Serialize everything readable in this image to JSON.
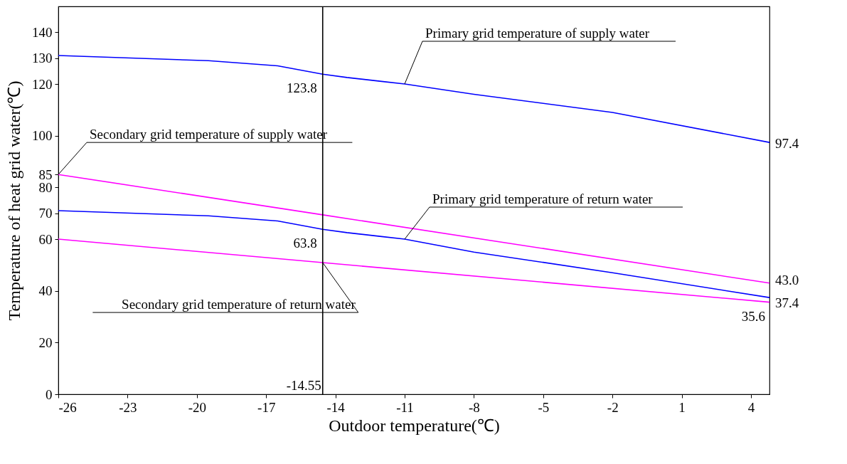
{
  "chart_data": {
    "type": "line",
    "xlabel": "Outdoor temperature(℃)",
    "ylabel": "Temperature of heat grid water(℃)",
    "xlim": [
      -26,
      4.8
    ],
    "xticks": [
      -26,
      -23,
      -20,
      -17,
      -14,
      -11,
      -8,
      -5,
      -2,
      1,
      4
    ],
    "ylim": [
      0,
      150
    ],
    "yticks": [
      0,
      20,
      40,
      60,
      70,
      80,
      85,
      100,
      120,
      130,
      140
    ],
    "grid": false,
    "marker": "none",
    "line_style": "solid",
    "ref_lines": [
      {
        "axis": "x",
        "value": -14.55,
        "label": "-14.55",
        "color": "#000000"
      }
    ],
    "series": [
      {
        "name": "Primary grid temperature of supply water",
        "color": "#0000ff",
        "x": [
          -26,
          -19.5,
          -16.5,
          -14.55,
          -13.5,
          -12,
          -11,
          -8,
          -2,
          4.8
        ],
        "values": [
          131,
          129,
          127,
          123.8,
          122.5,
          121,
          120,
          116,
          109,
          97.4
        ],
        "value_labels": [
          null,
          null,
          null,
          "123.8",
          null,
          null,
          null,
          null,
          null,
          "97.4"
        ]
      },
      {
        "name": "Secondary grid temperature of supply water",
        "color": "#ff00ff",
        "x": [
          -26,
          -14.55,
          4.8
        ],
        "values": [
          85,
          69.4,
          43.0
        ],
        "value_labels": [
          null,
          null,
          "43.0"
        ]
      },
      {
        "name": "Primary grid temperature of return water",
        "color": "#0000ff",
        "x": [
          -26,
          -19.5,
          -16.5,
          -14.55,
          -13.5,
          -12,
          -11,
          -8,
          -2,
          4.8
        ],
        "values": [
          71,
          69,
          67,
          63.8,
          62.5,
          61,
          60,
          55,
          47,
          37.4
        ],
        "value_labels": [
          null,
          null,
          null,
          "63.8",
          null,
          null,
          null,
          null,
          null,
          "37.4"
        ]
      },
      {
        "name": "Secondary grid temperature of return water",
        "color": "#ff00ff",
        "x": [
          -26,
          -14.55,
          4.8
        ],
        "values": [
          60,
          50.9,
          35.6
        ],
        "value_labels": [
          null,
          null,
          "35.6"
        ]
      }
    ]
  }
}
